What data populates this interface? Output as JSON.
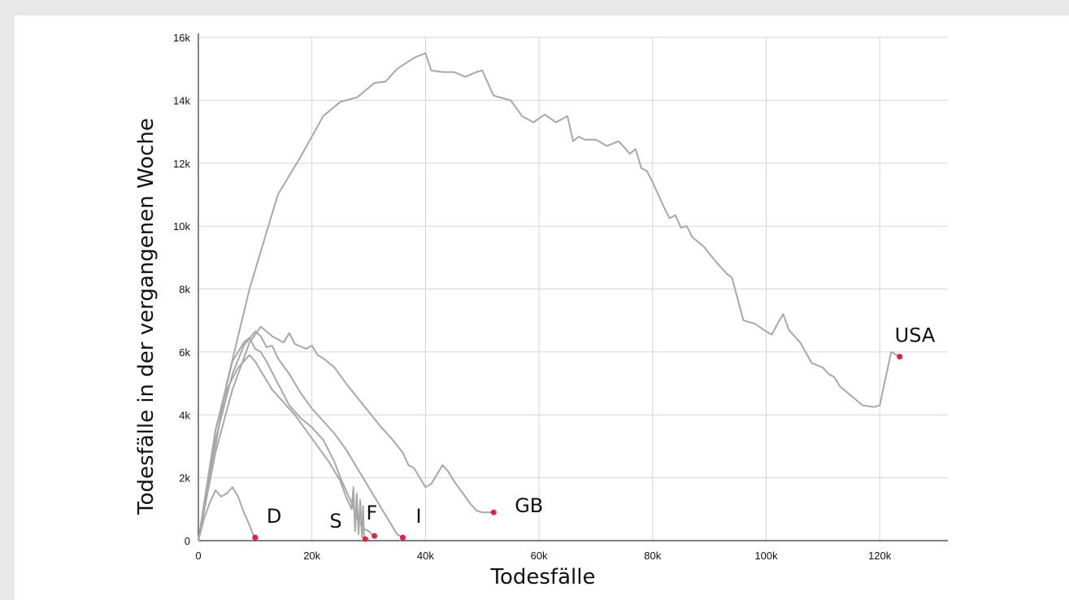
{
  "chart_data": {
    "type": "line",
    "title": "",
    "xlabel": "Todesfälle",
    "ylabel": "Todesfälle in der vergangenen Woche",
    "xlim": [
      0,
      132000
    ],
    "ylim": [
      0,
      16000
    ],
    "grid": true,
    "x_ticks": [
      0,
      20000,
      40000,
      60000,
      80000,
      100000,
      120000
    ],
    "x_tick_labels": [
      "0",
      "20k",
      "40k",
      "60k",
      "80k",
      "100k",
      "120k"
    ],
    "y_ticks": [
      0,
      2000,
      4000,
      6000,
      8000,
      10000,
      12000,
      14000,
      16000
    ],
    "y_tick_labels": [
      "0",
      "2k",
      "4k",
      "6k",
      "8k",
      "10k",
      "12k",
      "14k",
      "16k"
    ],
    "line_color": "#a8a8a8",
    "endpoint_color": "#e8203e",
    "series": [
      {
        "name": "USA",
        "points": [
          [
            0,
            0
          ],
          [
            2000,
            2000
          ],
          [
            5000,
            5000
          ],
          [
            9000,
            8000
          ],
          [
            14000,
            11000
          ],
          [
            18000,
            12200
          ],
          [
            22000,
            13500
          ],
          [
            25000,
            13950
          ],
          [
            28000,
            14100
          ],
          [
            31000,
            14550
          ],
          [
            33000,
            14600
          ],
          [
            35000,
            15000
          ],
          [
            38000,
            15350
          ],
          [
            40000,
            15500
          ],
          [
            41000,
            14950
          ],
          [
            43000,
            14900
          ],
          [
            45000,
            14900
          ],
          [
            47000,
            14750
          ],
          [
            49000,
            14900
          ],
          [
            50000,
            14950
          ],
          [
            52000,
            14150
          ],
          [
            55000,
            14000
          ],
          [
            57000,
            13500
          ],
          [
            59000,
            13300
          ],
          [
            61000,
            13550
          ],
          [
            63000,
            13300
          ],
          [
            65000,
            13500
          ],
          [
            66000,
            12700
          ],
          [
            67000,
            12850
          ],
          [
            68000,
            12750
          ],
          [
            70000,
            12750
          ],
          [
            72000,
            12550
          ],
          [
            74000,
            12700
          ],
          [
            76000,
            12300
          ],
          [
            77000,
            12450
          ],
          [
            78000,
            11850
          ],
          [
            79000,
            11750
          ],
          [
            80000,
            11400
          ],
          [
            82000,
            10600
          ],
          [
            83000,
            10250
          ],
          [
            84000,
            10350
          ],
          [
            85000,
            9950
          ],
          [
            86000,
            10000
          ],
          [
            87000,
            9650
          ],
          [
            89000,
            9350
          ],
          [
            91000,
            8900
          ],
          [
            93000,
            8500
          ],
          [
            94000,
            8350
          ],
          [
            96000,
            7000
          ],
          [
            98000,
            6900
          ],
          [
            100000,
            6650
          ],
          [
            101000,
            6550
          ],
          [
            102000,
            6900
          ],
          [
            103000,
            7200
          ],
          [
            104000,
            6700
          ],
          [
            106000,
            6300
          ],
          [
            108000,
            5650
          ],
          [
            110000,
            5500
          ],
          [
            111000,
            5300
          ],
          [
            112000,
            5200
          ],
          [
            113000,
            4900
          ],
          [
            115000,
            4600
          ],
          [
            117000,
            4300
          ],
          [
            119000,
            4250
          ],
          [
            120000,
            4300
          ],
          [
            122000,
            6000
          ],
          [
            123500,
            5850
          ]
        ]
      },
      {
        "name": "GB",
        "points": [
          [
            0,
            0
          ],
          [
            3000,
            2800
          ],
          [
            6000,
            4800
          ],
          [
            9000,
            6300
          ],
          [
            11000,
            6800
          ],
          [
            13000,
            6500
          ],
          [
            15000,
            6300
          ],
          [
            16000,
            6600
          ],
          [
            17000,
            6250
          ],
          [
            19000,
            6100
          ],
          [
            20000,
            6200
          ],
          [
            21000,
            5900
          ],
          [
            22000,
            5800
          ],
          [
            24000,
            5500
          ],
          [
            26000,
            5000
          ],
          [
            28000,
            4550
          ],
          [
            30000,
            4100
          ],
          [
            32000,
            3650
          ],
          [
            34000,
            3250
          ],
          [
            36000,
            2800
          ],
          [
            37000,
            2400
          ],
          [
            38000,
            2300
          ],
          [
            39000,
            2000
          ],
          [
            40000,
            1700
          ],
          [
            41000,
            1800
          ],
          [
            42000,
            2100
          ],
          [
            43000,
            2400
          ],
          [
            44000,
            2200
          ],
          [
            45000,
            1900
          ],
          [
            46000,
            1650
          ],
          [
            47000,
            1400
          ],
          [
            48000,
            1150
          ],
          [
            49000,
            950
          ],
          [
            50000,
            900
          ],
          [
            52000,
            900
          ]
        ]
      },
      {
        "name": "I",
        "points": [
          [
            0,
            0
          ],
          [
            3000,
            3200
          ],
          [
            6000,
            5300
          ],
          [
            8000,
            6200
          ],
          [
            10000,
            6650
          ],
          [
            11000,
            6500
          ],
          [
            12000,
            6150
          ],
          [
            13000,
            6200
          ],
          [
            14000,
            5800
          ],
          [
            16000,
            5300
          ],
          [
            18000,
            4700
          ],
          [
            20000,
            4200
          ],
          [
            22000,
            3800
          ],
          [
            24000,
            3400
          ],
          [
            26000,
            2900
          ],
          [
            28000,
            2300
          ],
          [
            30000,
            1700
          ],
          [
            32000,
            1100
          ],
          [
            34000,
            500
          ],
          [
            35000,
            200
          ],
          [
            36000,
            100
          ]
        ]
      },
      {
        "name": "F",
        "points": [
          [
            0,
            0
          ],
          [
            3000,
            3500
          ],
          [
            6000,
            5700
          ],
          [
            8000,
            6300
          ],
          [
            9000,
            6450
          ],
          [
            10000,
            6100
          ],
          [
            11000,
            6000
          ],
          [
            12000,
            5700
          ],
          [
            14000,
            5000
          ],
          [
            16000,
            4300
          ],
          [
            18000,
            3900
          ],
          [
            20000,
            3600
          ],
          [
            22000,
            3200
          ],
          [
            24000,
            2500
          ],
          [
            25000,
            2000
          ],
          [
            26000,
            1600
          ],
          [
            27000,
            1200
          ],
          [
            28000,
            700
          ],
          [
            29000,
            400
          ],
          [
            30000,
            300
          ],
          [
            31000,
            150
          ]
        ]
      },
      {
        "name": "S",
        "points": [
          [
            0,
            0
          ],
          [
            3000,
            3500
          ],
          [
            5000,
            4800
          ],
          [
            7000,
            5500
          ],
          [
            9000,
            5900
          ],
          [
            10000,
            5700
          ],
          [
            11000,
            5400
          ],
          [
            13000,
            4800
          ],
          [
            15000,
            4400
          ],
          [
            17000,
            4000
          ],
          [
            19000,
            3500
          ],
          [
            21000,
            3000
          ],
          [
            23000,
            2500
          ],
          [
            25000,
            1900
          ],
          [
            26000,
            1400
          ],
          [
            27000,
            1000
          ],
          [
            27300,
            1700
          ],
          [
            27600,
            300
          ],
          [
            27900,
            1500
          ],
          [
            28200,
            200
          ],
          [
            28500,
            1300
          ],
          [
            28800,
            100
          ],
          [
            29000,
            1100
          ],
          [
            29200,
            0
          ],
          [
            29400,
            50
          ]
        ]
      },
      {
        "name": "D",
        "points": [
          [
            0,
            0
          ],
          [
            1000,
            700
          ],
          [
            2000,
            1200
          ],
          [
            3000,
            1600
          ],
          [
            4000,
            1400
          ],
          [
            5000,
            1500
          ],
          [
            6000,
            1700
          ],
          [
            7000,
            1400
          ],
          [
            8000,
            900
          ],
          [
            9000,
            500
          ],
          [
            9500,
            250
          ],
          [
            10000,
            100
          ]
        ]
      }
    ],
    "annotations": [
      {
        "text": "USA",
        "series": "USA"
      },
      {
        "text": "GB",
        "series": "GB"
      },
      {
        "text": "I",
        "series": "I"
      },
      {
        "text": "F",
        "series": "F"
      },
      {
        "text": "S",
        "series": "S"
      },
      {
        "text": "D",
        "series": "D"
      }
    ]
  }
}
